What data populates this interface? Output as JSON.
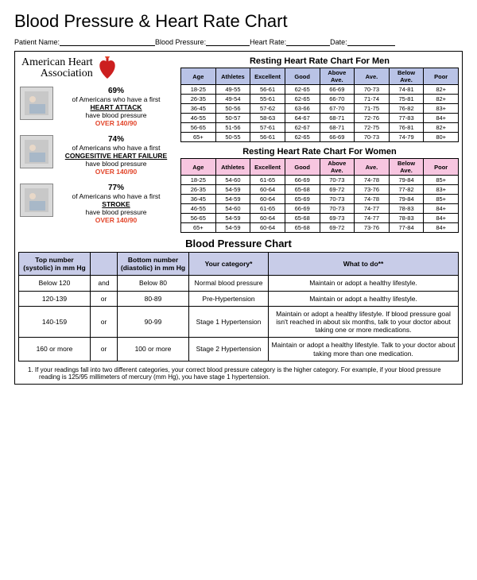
{
  "title": "Blood Pressure & Heart Rate Chart",
  "fields": {
    "patient": "Patient Name:",
    "bp": "Blood Pressure:",
    "hr": "Heart Rate:",
    "date": "Date:"
  },
  "aha": {
    "line1": "American Heart",
    "line2": "Association"
  },
  "stats": [
    {
      "pct": "69%",
      "l1": "of Americans who have a first",
      "cond": "HEART ATTACK",
      "l2": "have blood pressure",
      "over": "OVER 140/90"
    },
    {
      "pct": "74%",
      "l1": "of Americans who have a first",
      "cond": "CONGESITIVE HEART FAILURE",
      "l2": "have blood pressure",
      "over": "OVER 140/90"
    },
    {
      "pct": "77%",
      "l1": "of Americans who have a first",
      "cond": "STROKE",
      "l2": "have blood pressure",
      "over": "OVER 140/90"
    }
  ],
  "hr_men": {
    "title": "Resting Heart Rate Chart For Men",
    "headers": [
      "Age",
      "Athletes",
      "Excellent",
      "Good",
      "Above Ave.",
      "Ave.",
      "Below Ave.",
      "Poor"
    ],
    "rows": [
      [
        "18-25",
        "49-55",
        "56-61",
        "62-65",
        "66-69",
        "70-73",
        "74-81",
        "82+"
      ],
      [
        "26-35",
        "49-54",
        "55-61",
        "62-65",
        "66-70",
        "71-74",
        "75-81",
        "82+"
      ],
      [
        "36-45",
        "50-56",
        "57-62",
        "63-66",
        "67-70",
        "71-75",
        "76-82",
        "83+"
      ],
      [
        "46-55",
        "50-57",
        "58-63",
        "64-67",
        "68-71",
        "72-76",
        "77-83",
        "84+"
      ],
      [
        "56-65",
        "51-56",
        "57-61",
        "62-67",
        "68-71",
        "72-75",
        "76-81",
        "82+"
      ],
      [
        "65+",
        "50-55",
        "56-61",
        "62-65",
        "66-69",
        "70-73",
        "74-79",
        "80+"
      ]
    ]
  },
  "hr_women": {
    "title": "Resting Heart Rate Chart For Women",
    "headers": [
      "Age",
      "Athletes",
      "Excellent",
      "Good",
      "Above Ave.",
      "Ave.",
      "Below Ave.",
      "Poor"
    ],
    "rows": [
      [
        "18-25",
        "54-60",
        "61-65",
        "66-69",
        "70-73",
        "74-78",
        "79-84",
        "85+"
      ],
      [
        "26-35",
        "54-59",
        "60-64",
        "65-68",
        "69-72",
        "73-76",
        "77-82",
        "83+"
      ],
      [
        "36-45",
        "54-59",
        "60-64",
        "65-69",
        "70-73",
        "74-78",
        "79-84",
        "85+"
      ],
      [
        "46-55",
        "54-60",
        "61-65",
        "66-69",
        "70-73",
        "74-77",
        "78-83",
        "84+"
      ],
      [
        "56-65",
        "54-59",
        "60-64",
        "65-68",
        "69-73",
        "74-77",
        "78-83",
        "84+"
      ],
      [
        "65+",
        "54-59",
        "60-64",
        "65-68",
        "69-72",
        "73-76",
        "77-84",
        "84+"
      ]
    ]
  },
  "bp": {
    "title": "Blood Pressure Chart",
    "headers": [
      "Top number (systolic) in mm Hg",
      "",
      "Bottom number (diastolic) in mm Hg",
      "Your category*",
      "What to do**"
    ],
    "rows": [
      [
        "Below 120",
        "and",
        "Below 80",
        "Normal blood pressure",
        "Maintain or adopt a healthy lifestyle."
      ],
      [
        "120-139",
        "or",
        "80-89",
        "Pre-Hypertension",
        "Maintain or adopt a healthy lifestyle."
      ],
      [
        "140-159",
        "or",
        "90-99",
        "Stage 1 Hypertension",
        "Maintain or adopt a healthy lifestyle. If blood pressure goal isn't reached in about six months, talk to your doctor about taking one or more medications."
      ],
      [
        "160 or more",
        "or",
        "100 or more",
        "Stage 2 Hypertension",
        "Maintain or adopt a healthy lifestyle. Talk to your doctor about taking more than one medication."
      ]
    ]
  },
  "footnote": "1.    If your readings fall into two different categories, your correct blood pressure category is the higher category. For example, if your blood pressure reading is 125/95 millimeters of mercury (mm Hg), you have stage 1 hypertension.",
  "colors": {
    "men_header": "#b9c3e6",
    "women_header": "#f7c6e0",
    "bp_header": "#c8cce8",
    "over_text": "#e2452a"
  }
}
